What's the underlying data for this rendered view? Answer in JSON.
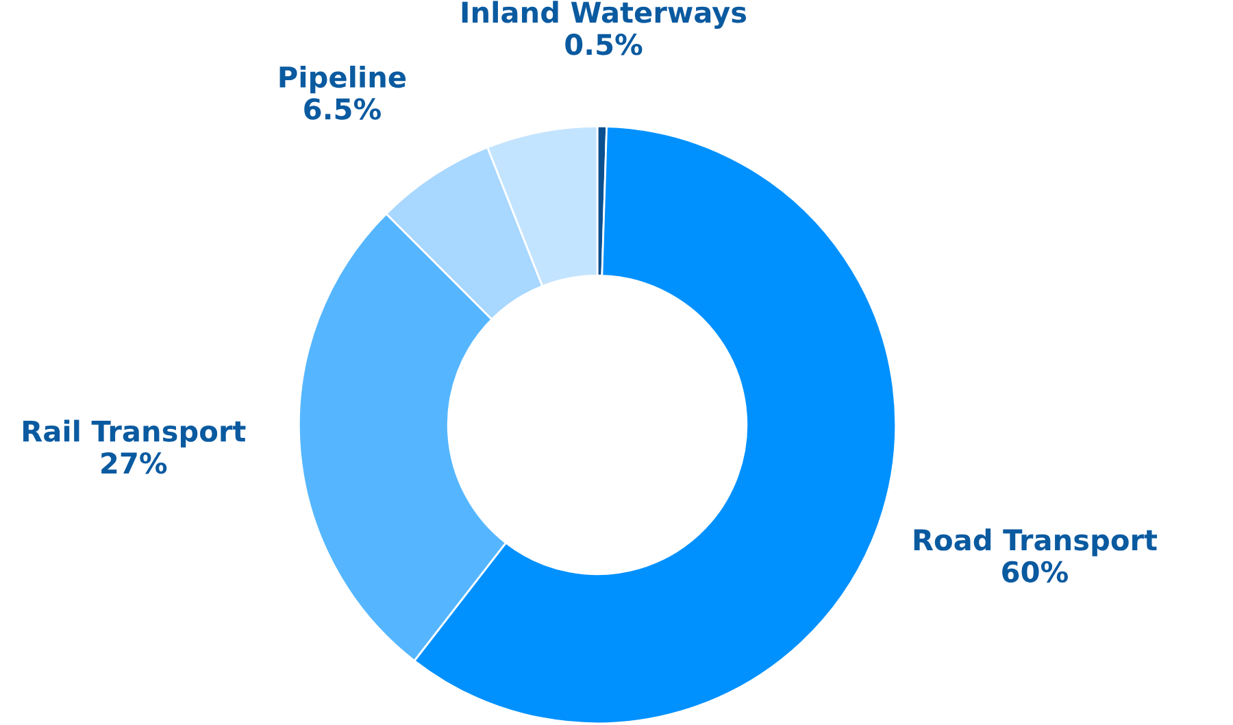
{
  "chart_data": {
    "type": "donut",
    "categories": [
      "Inland Waterways",
      "Road Transport",
      "Rail Transport",
      "Pipeline",
      null
    ],
    "values": [
      0.5,
      60,
      27,
      6.5,
      6
    ],
    "value_labels": [
      "0.5%",
      "60%",
      "27%",
      "6.5%",
      null
    ],
    "colors": [
      "#0b4f8f",
      "#0091ff",
      "#55b6ff",
      "#a8d7ff",
      "#c3e4ff"
    ],
    "legend": false
  }
}
